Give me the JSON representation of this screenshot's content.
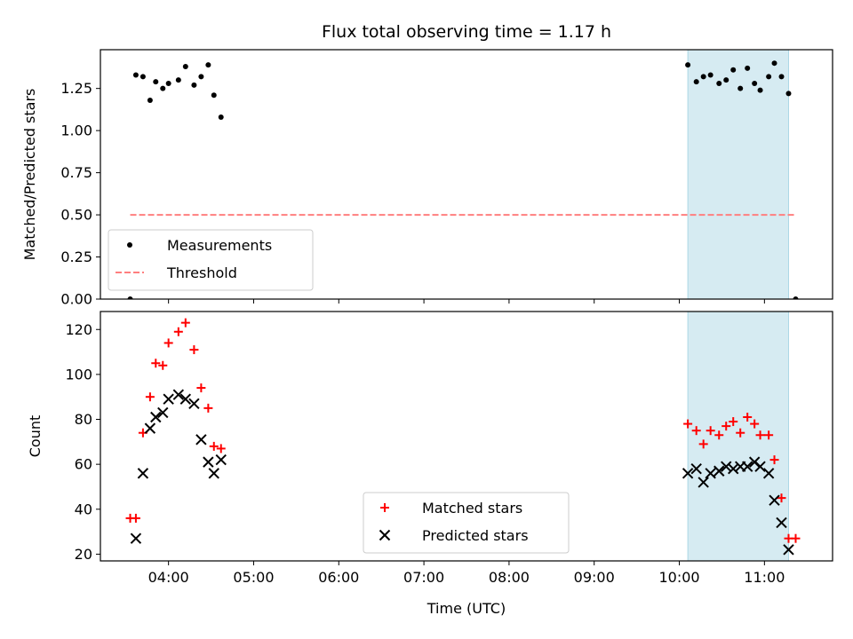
{
  "chart_data": [
    {
      "type": "scatter",
      "title": "Flux total observing time = 1.17 h",
      "xlabel": "",
      "ylabel": "Matched/Predicted stars",
      "ylim": [
        0,
        1.48
      ],
      "yticks": [
        "0.00",
        "0.25",
        "0.50",
        "0.75",
        "1.00",
        "1.25"
      ],
      "xlim": [
        "03:12",
        "11:48"
      ],
      "xticks": [
        "04:00",
        "05:00",
        "06:00",
        "07:00",
        "08:00",
        "09:00",
        "10:00",
        "11:00"
      ],
      "grid": false,
      "legend": {
        "location": "lower-left",
        "entries": [
          "Measurements",
          "Threshold"
        ]
      },
      "highlight_span": {
        "from": "10:06",
        "to": "11:17",
        "color": "#add8e6"
      },
      "series": [
        {
          "name": "Measurements",
          "marker": "dot",
          "color": "#000000",
          "points": [
            [
              "03:33",
              0.0
            ],
            [
              "03:37",
              1.33
            ],
            [
              "03:42",
              1.32
            ],
            [
              "03:47",
              1.18
            ],
            [
              "03:51",
              1.29
            ],
            [
              "03:56",
              1.25
            ],
            [
              "04:00",
              1.28
            ],
            [
              "04:07",
              1.3
            ],
            [
              "04:12",
              1.38
            ],
            [
              "04:18",
              1.27
            ],
            [
              "04:23",
              1.32
            ],
            [
              "04:28",
              1.39
            ],
            [
              "04:32",
              1.21
            ],
            [
              "04:37",
              1.08
            ],
            [
              "10:06",
              1.39
            ],
            [
              "10:12",
              1.29
            ],
            [
              "10:17",
              1.32
            ],
            [
              "10:22",
              1.33
            ],
            [
              "10:28",
              1.28
            ],
            [
              "10:33",
              1.3
            ],
            [
              "10:38",
              1.36
            ],
            [
              "10:43",
              1.25
            ],
            [
              "10:48",
              1.37
            ],
            [
              "10:53",
              1.28
            ],
            [
              "10:57",
              1.24
            ],
            [
              "11:03",
              1.32
            ],
            [
              "11:07",
              1.4
            ],
            [
              "11:12",
              1.32
            ],
            [
              "11:17",
              1.22
            ],
            [
              "11:22",
              0.0
            ]
          ]
        },
        {
          "name": "Threshold",
          "style": "dashed",
          "color": "#ff7f7f",
          "points": [
            [
              "03:33",
              0.5
            ],
            [
              "11:22",
              0.5
            ]
          ]
        }
      ]
    },
    {
      "type": "scatter",
      "title": "",
      "xlabel": "Time (UTC)",
      "ylabel": "Count",
      "ylim": [
        17,
        128
      ],
      "yticks": [
        "20",
        "40",
        "60",
        "80",
        "100",
        "120"
      ],
      "xlim": [
        "03:12",
        "11:48"
      ],
      "xticks": [
        "04:00",
        "05:00",
        "06:00",
        "07:00",
        "08:00",
        "09:00",
        "10:00",
        "11:00"
      ],
      "grid": false,
      "legend": {
        "location": "lower-center",
        "entries": [
          "Matched stars",
          "Predicted stars"
        ]
      },
      "highlight_span": {
        "from": "10:06",
        "to": "11:17",
        "color": "#add8e6"
      },
      "series": [
        {
          "name": "Matched stars",
          "marker": "plus",
          "color": "#ff0000",
          "points": [
            [
              "03:33",
              36
            ],
            [
              "03:37",
              36
            ],
            [
              "03:42",
              74
            ],
            [
              "03:47",
              90
            ],
            [
              "03:51",
              105
            ],
            [
              "03:56",
              104
            ],
            [
              "04:00",
              114
            ],
            [
              "04:07",
              119
            ],
            [
              "04:12",
              123
            ],
            [
              "04:18",
              111
            ],
            [
              "04:23",
              94
            ],
            [
              "04:28",
              85
            ],
            [
              "04:32",
              68
            ],
            [
              "04:37",
              67
            ],
            [
              "10:06",
              78
            ],
            [
              "10:12",
              75
            ],
            [
              "10:17",
              69
            ],
            [
              "10:22",
              75
            ],
            [
              "10:28",
              73
            ],
            [
              "10:33",
              77
            ],
            [
              "10:38",
              79
            ],
            [
              "10:43",
              74
            ],
            [
              "10:48",
              81
            ],
            [
              "10:53",
              78
            ],
            [
              "10:57",
              73
            ],
            [
              "11:03",
              73
            ],
            [
              "11:07",
              62
            ],
            [
              "11:12",
              45
            ],
            [
              "11:17",
              27
            ],
            [
              "11:22",
              27
            ]
          ]
        },
        {
          "name": "Predicted stars",
          "marker": "x",
          "color": "#000000",
          "points": [
            [
              "03:37",
              27
            ],
            [
              "03:42",
              56
            ],
            [
              "03:47",
              76
            ],
            [
              "03:51",
              81
            ],
            [
              "03:56",
              83
            ],
            [
              "04:00",
              89
            ],
            [
              "04:07",
              91
            ],
            [
              "04:12",
              89
            ],
            [
              "04:18",
              87
            ],
            [
              "04:23",
              71
            ],
            [
              "04:28",
              61
            ],
            [
              "04:32",
              56
            ],
            [
              "04:37",
              62
            ],
            [
              "10:06",
              56
            ],
            [
              "10:12",
              58
            ],
            [
              "10:17",
              52
            ],
            [
              "10:22",
              56
            ],
            [
              "10:28",
              57
            ],
            [
              "10:33",
              59
            ],
            [
              "10:38",
              58
            ],
            [
              "10:43",
              59
            ],
            [
              "10:48",
              59
            ],
            [
              "10:53",
              61
            ],
            [
              "10:57",
              59
            ],
            [
              "11:03",
              56
            ],
            [
              "11:07",
              44
            ],
            [
              "11:12",
              34
            ],
            [
              "11:17",
              22
            ]
          ]
        }
      ]
    }
  ]
}
